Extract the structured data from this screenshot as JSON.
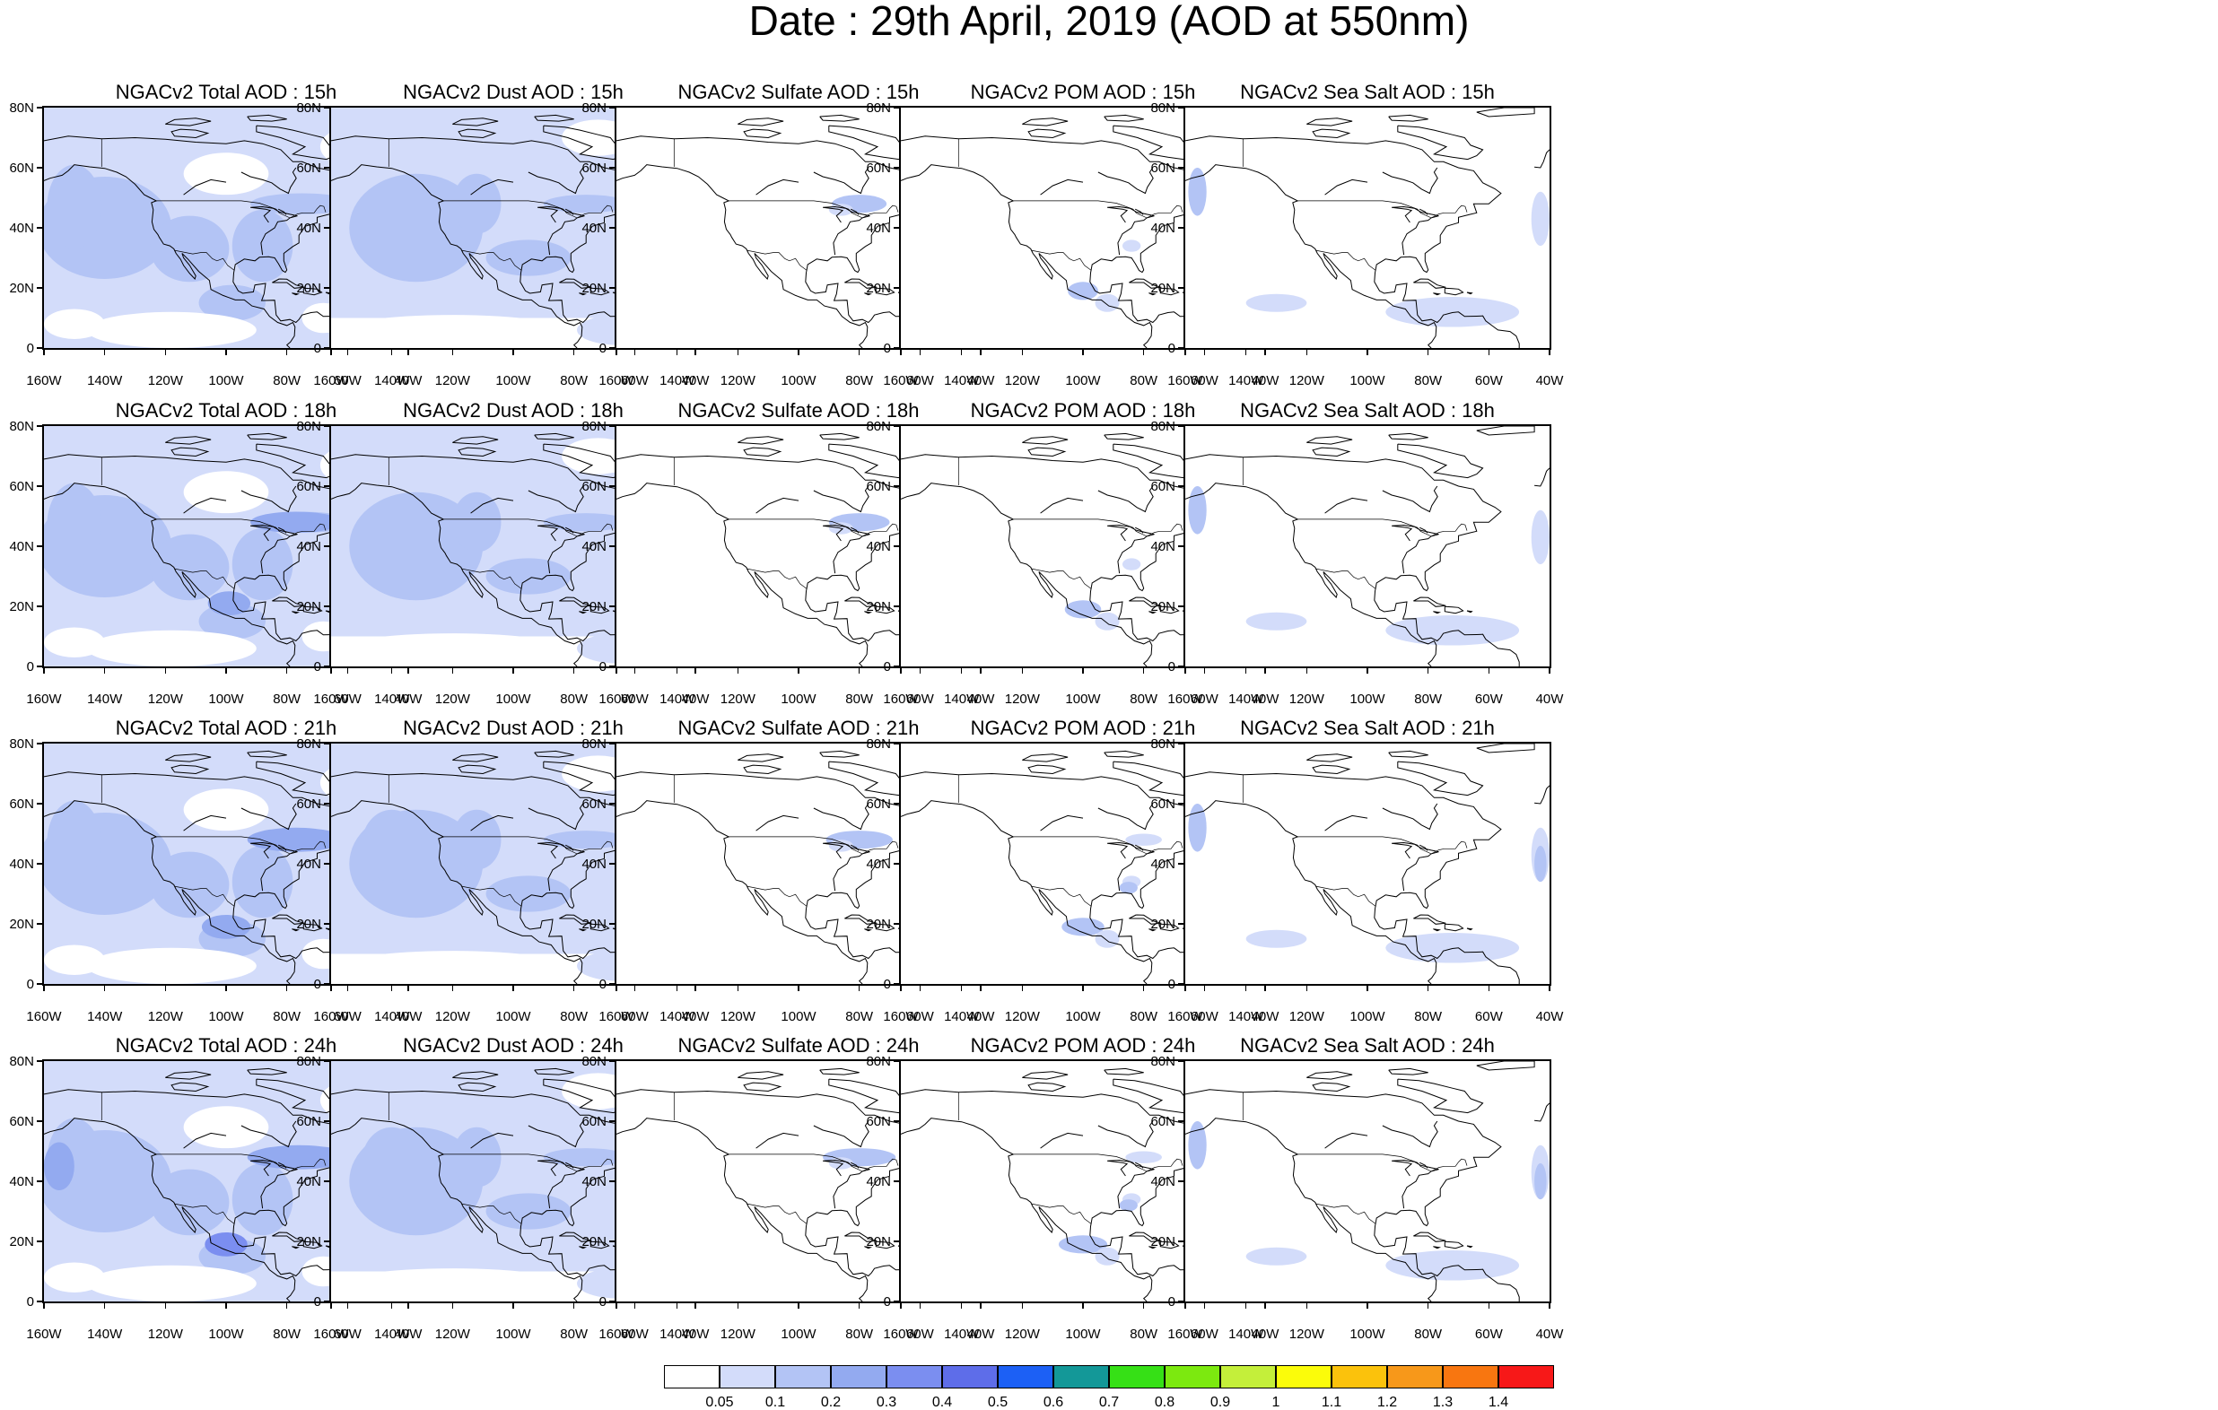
{
  "title": "Date : 29th April, 2019 (AOD at 550nm)",
  "x_ticks": [
    "160W",
    "140W",
    "120W",
    "100W",
    "80W",
    "60W",
    "40W"
  ],
  "y_ticks": [
    "80N",
    "60N",
    "40N",
    "20N",
    "0"
  ],
  "panels": [
    {
      "title": "NGACv2 Total AOD : 15h",
      "variable": "total",
      "hour": "15h"
    },
    {
      "title": "NGACv2 Dust AOD : 15h",
      "variable": "dust",
      "hour": "15h"
    },
    {
      "title": "NGACv2 Sulfate AOD : 15h",
      "variable": "sulfate",
      "hour": "15h"
    },
    {
      "title": "NGACv2 POM AOD : 15h",
      "variable": "pom",
      "hour": "15h"
    },
    {
      "title": "NGACv2 Sea Salt AOD : 15h",
      "variable": "seasalt",
      "hour": "15h"
    },
    {
      "title": "NGACv2 Total AOD : 18h",
      "variable": "total",
      "hour": "18h"
    },
    {
      "title": "NGACv2 Dust AOD : 18h",
      "variable": "dust",
      "hour": "18h"
    },
    {
      "title": "NGACv2 Sulfate AOD : 18h",
      "variable": "sulfate",
      "hour": "18h"
    },
    {
      "title": "NGACv2 POM AOD : 18h",
      "variable": "pom",
      "hour": "18h"
    },
    {
      "title": "NGACv2 Sea Salt AOD : 18h",
      "variable": "seasalt",
      "hour": "18h"
    },
    {
      "title": "NGACv2 Total AOD : 21h",
      "variable": "total",
      "hour": "21h"
    },
    {
      "title": "NGACv2 Dust AOD : 21h",
      "variable": "dust",
      "hour": "21h"
    },
    {
      "title": "NGACv2 Sulfate AOD : 21h",
      "variable": "sulfate",
      "hour": "21h"
    },
    {
      "title": "NGACv2 POM AOD : 21h",
      "variable": "pom",
      "hour": "21h"
    },
    {
      "title": "NGACv2 Sea Salt AOD : 21h",
      "variable": "seasalt",
      "hour": "21h"
    },
    {
      "title": "NGACv2 Total AOD : 24h",
      "variable": "total",
      "hour": "24h"
    },
    {
      "title": "NGACv2 Dust AOD : 24h",
      "variable": "dust",
      "hour": "24h"
    },
    {
      "title": "NGACv2 Sulfate AOD : 24h",
      "variable": "sulfate",
      "hour": "24h"
    },
    {
      "title": "NGACv2 POM AOD : 24h",
      "variable": "pom",
      "hour": "24h"
    },
    {
      "title": "NGACv2 Sea Salt  AOD : 24h",
      "variable": "seasalt",
      "hour": "24h"
    }
  ],
  "colorbar": {
    "labels": [
      "0.05",
      "0.1",
      "0.2",
      "0.3",
      "0.4",
      "0.5",
      "0.6",
      "0.7",
      "0.8",
      "0.9",
      "1",
      "1.1",
      "1.2",
      "1.3",
      "1.4"
    ],
    "colors": [
      "#ffffff",
      "#d3dcfa",
      "#b3c4f5",
      "#93aaf0",
      "#7b8ef0",
      "#5e6de9",
      "#1c60f5",
      "#139898",
      "#36e016",
      "#7ce90f",
      "#c4ef3a",
      "#fbfc0a",
      "#fbc20c",
      "#f7981a",
      "#f87610",
      "#f71818"
    ]
  }
}
